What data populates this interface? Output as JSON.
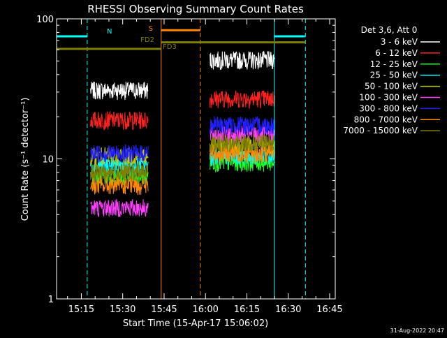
{
  "chart_data": {
    "type": "line",
    "title": "RHESSI Observing Summary Count Rates",
    "xlabel": "Start Time (15-Apr-17 15:06:02)",
    "ylabel": "Count Rate (s⁻¹ detector⁻¹)",
    "x_unit": "minutes since start",
    "x_ticks": [
      {
        "label": "15:15",
        "t": 8.97
      },
      {
        "label": "15:30",
        "t": 23.97
      },
      {
        "label": "15:45",
        "t": 38.97
      },
      {
        "label": "16:00",
        "t": 53.97
      },
      {
        "label": "16:15",
        "t": 68.97
      },
      {
        "label": "16:30",
        "t": 83.97
      },
      {
        "label": "16:45",
        "t": 98.97
      }
    ],
    "xlim": [
      0,
      101
    ],
    "y_scale": "log",
    "y_ticks": [
      {
        "label": "1",
        "v": 1
      },
      {
        "label": "10",
        "v": 10
      },
      {
        "label": "100",
        "v": 100
      }
    ],
    "ylim": [
      1,
      100
    ],
    "legend_title": "Det 3,6, Att 0",
    "legend_position": "right",
    "footer": "31-Aug-2022 20:47",
    "segments": [
      [
        12.3,
        33.3
      ],
      [
        55.5,
        79.2
      ]
    ],
    "series": [
      {
        "name": "3 - 6 keV",
        "color": "#ffffff",
        "levels": [
          31,
          51
        ]
      },
      {
        "name": "6 - 12 keV",
        "color": "#ff2020",
        "levels": [
          19,
          27
        ]
      },
      {
        "name": "12 - 25 keV",
        "color": "#20ff20",
        "levels": [
          7.5,
          9.5
        ]
      },
      {
        "name": "25 - 50 keV",
        "color": "#00ffff",
        "levels": [
          9,
          10.5
        ]
      },
      {
        "name": "50 - 100 keV",
        "color": "#c8c800",
        "levels": [
          10.5,
          12.5
        ]
      },
      {
        "name": "100 - 300 keV",
        "color": "#ff40ff",
        "levels": [
          4.5,
          15
        ]
      },
      {
        "name": "300 - 800 keV",
        "color": "#2020ff",
        "levels": [
          11,
          17.5
        ]
      },
      {
        "name": "800 - 7000 keV",
        "color": "#ff8800",
        "levels": [
          6.5,
          11
        ]
      },
      {
        "name": "7000 - 15000 keV",
        "color": "#808000",
        "levels": [
          8,
          13
        ]
      }
    ],
    "flag_bars": [
      {
        "label": "N",
        "color": "#00ffff",
        "ranges": [
          [
            0,
            11.1
          ],
          [
            78.9,
            90
          ]
        ],
        "v": 75
      },
      {
        "label": "S",
        "color": "#ff8800",
        "ranges": [
          [
            37.9,
            52.1
          ]
        ],
        "v": 83
      },
      {
        "label": "FD2",
        "color": "#808000",
        "ranges": [
          [
            37.9,
            90.2
          ]
        ],
        "v": 68
      },
      {
        "label": "FD3",
        "color": "#808000",
        "ranges": [
          [
            0,
            37.9
          ]
        ],
        "v": 61
      }
    ],
    "vlines": [
      {
        "t": 11.1,
        "color": "#00ffff",
        "dash": true
      },
      {
        "t": 37.9,
        "color": "#ff8800",
        "dash": false
      },
      {
        "t": 52.1,
        "color": "#ff8800",
        "dash": true
      },
      {
        "t": 78.9,
        "color": "#00ffff",
        "dash": false
      },
      {
        "t": 90.2,
        "color": "#00ffff",
        "dash": true
      }
    ]
  }
}
